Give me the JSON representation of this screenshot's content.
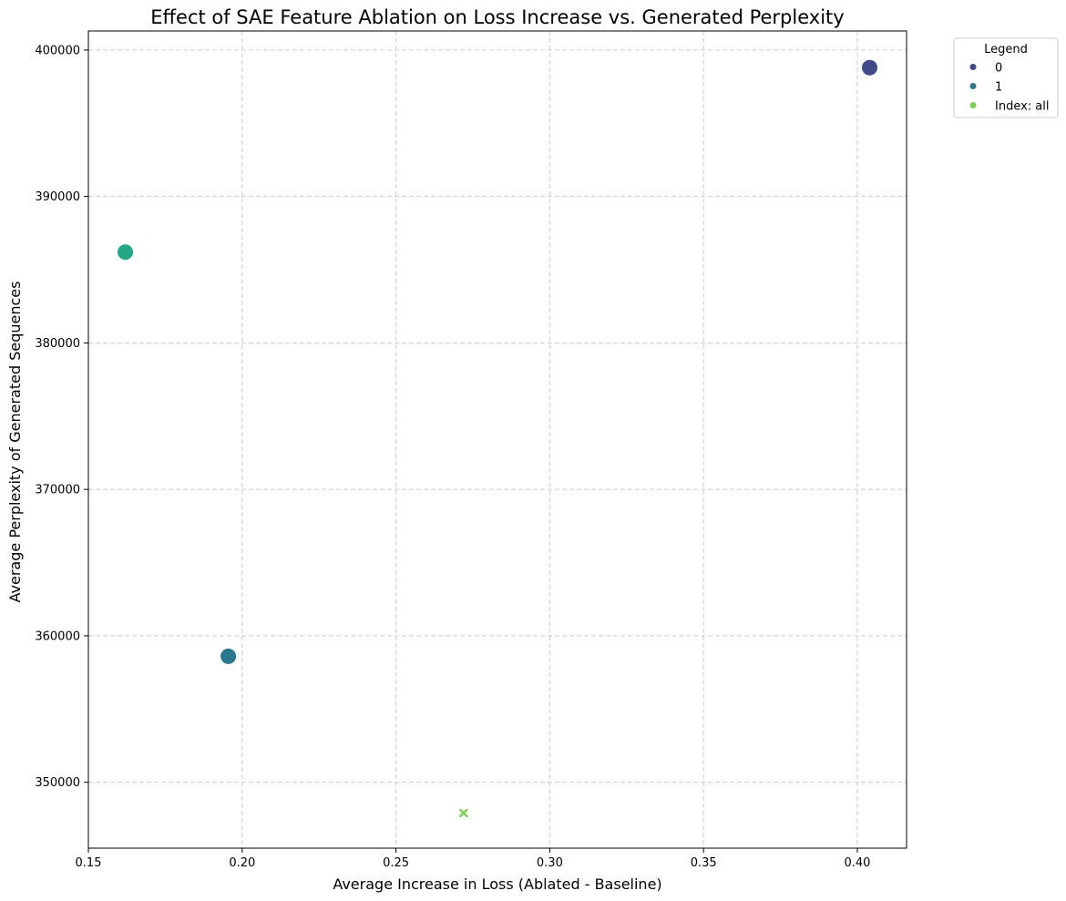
{
  "chart_data": {
    "type": "scatter",
    "title": "Effect of SAE Feature Ablation on Loss Increase vs. Generated Perplexity",
    "xlabel": "Average Increase in Loss (Ablated - Baseline)",
    "ylabel": "Average Perplexity of Generated Sequences",
    "xlim": [
      0.15,
      0.416
    ],
    "ylim": [
      345500,
      401300
    ],
    "x_ticks": [
      0.15,
      0.2,
      0.25,
      0.3,
      0.35,
      0.4
    ],
    "x_tick_labels": [
      "0.15",
      "0.20",
      "0.25",
      "0.30",
      "0.35",
      "0.40"
    ],
    "y_ticks": [
      350000,
      360000,
      370000,
      380000,
      390000,
      400000
    ],
    "y_tick_labels": [
      "350000",
      "360000",
      "370000",
      "380000",
      "390000",
      "400000"
    ],
    "grid": true,
    "legend": {
      "title": "Legend",
      "placement": "outside-top-right",
      "entries": [
        {
          "label": "0",
          "color": "#3e4a89"
        },
        {
          "label": "1",
          "color": "#2a788e"
        },
        {
          "label": "Index: all",
          "color": "#7ad151"
        }
      ]
    },
    "points": [
      {
        "x": 0.404,
        "y": 398800,
        "color": "#3e4a89",
        "marker": "circle"
      },
      {
        "x": 0.162,
        "y": 386200,
        "color": "#22a884",
        "marker": "circle"
      },
      {
        "x": 0.1955,
        "y": 358600,
        "color": "#2a788e",
        "marker": "circle"
      },
      {
        "x": 0.272,
        "y": 347900,
        "color": "#7ad151",
        "marker": "x"
      }
    ]
  }
}
